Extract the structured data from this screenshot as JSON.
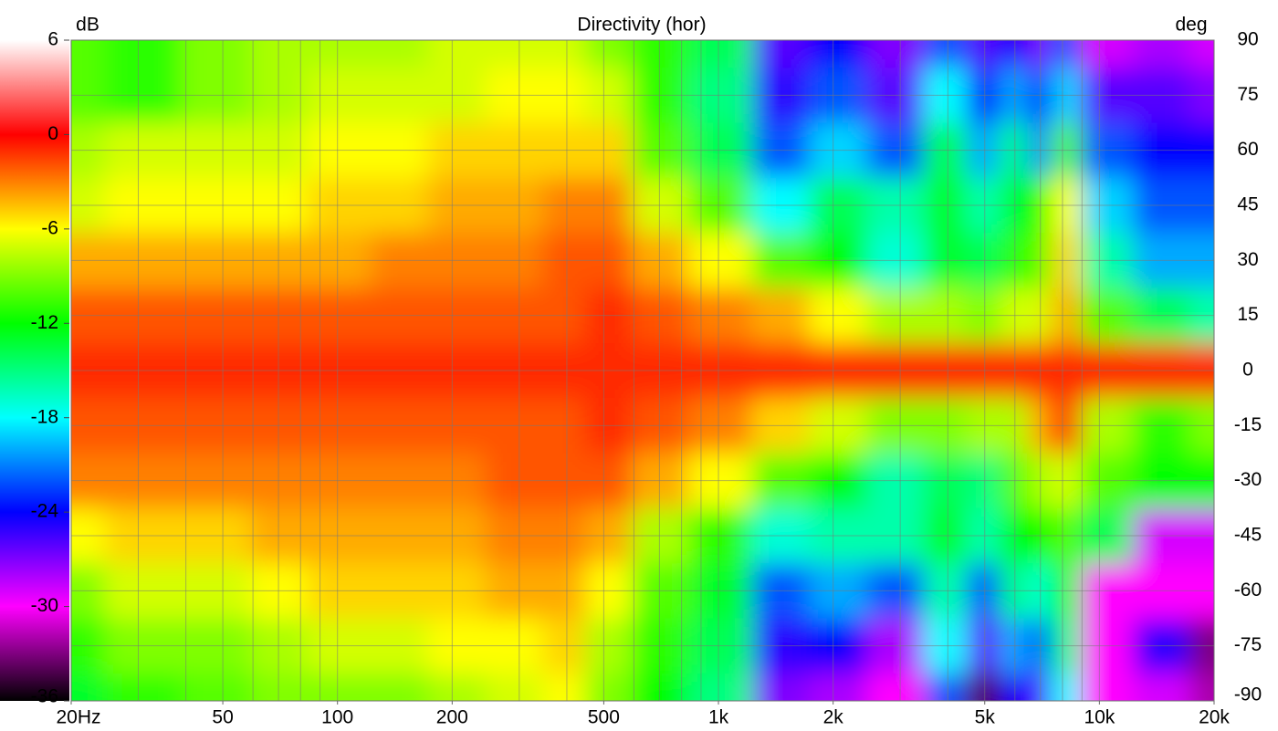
{
  "chart_data": {
    "type": "heatmap",
    "title": "Directivity (hor)",
    "colorbar_label": "dB",
    "y_label": "deg",
    "x": [
      20,
      30,
      50,
      70,
      100,
      150,
      200,
      300,
      400,
      500,
      700,
      1000,
      1500,
      2000,
      3000,
      4000,
      5000,
      6000,
      7000,
      8000,
      10000,
      15000,
      20000
    ],
    "y": [
      90,
      75,
      60,
      45,
      30,
      15,
      0,
      -15,
      -30,
      -45,
      -60,
      -75,
      -90
    ],
    "values": [
      [
        -10,
        -11,
        -9,
        -8,
        -8,
        -8,
        -7,
        -7,
        -7,
        -9,
        -11,
        -14,
        -26,
        -24,
        -27,
        -22,
        -26,
        -24,
        -27,
        -22,
        -29,
        -28,
        -29
      ],
      [
        -10,
        -11,
        -9,
        -8,
        -7,
        -7,
        -7,
        -6,
        -6,
        -7,
        -11,
        -15,
        -25,
        -22,
        -26,
        -18,
        -24,
        -20,
        -24,
        -19,
        -26,
        -26,
        -27
      ],
      [
        -8,
        -7,
        -7,
        -7,
        -6,
        -6,
        -5,
        -5,
        -5,
        -5,
        -10,
        -14,
        -22,
        -19,
        -22,
        -14,
        -20,
        -15,
        -21,
        -10,
        -22,
        -24,
        -24
      ],
      [
        -7,
        -6,
        -6,
        -6,
        -5,
        -5,
        -4,
        -4,
        -3,
        -3,
        -7,
        -10,
        -18,
        -14,
        -16,
        -13,
        -16,
        -13,
        -12,
        -6,
        -19,
        -22,
        -22
      ],
      [
        -4,
        -4,
        -4,
        -4,
        -4,
        -3,
        -3,
        -3,
        -2,
        -2,
        -4,
        -6,
        -10,
        -12,
        -17,
        -13,
        -14,
        -11,
        -10,
        -5,
        -16,
        -20,
        -20
      ],
      [
        -2,
        -2,
        -2,
        -2,
        -2,
        -2,
        -2,
        -2,
        -2,
        -1,
        -2,
        -3,
        -4,
        -6,
        -8,
        -8,
        -9,
        -7,
        -7,
        -4,
        -10,
        -14,
        -16
      ],
      [
        -1,
        -1,
        -1,
        -1,
        -1,
        -1,
        -1,
        -1,
        -1,
        -1,
        -1,
        -1,
        -1,
        -1,
        -1,
        -1,
        -1,
        -1,
        -1,
        -1,
        -1,
        -1,
        -1
      ],
      [
        -2,
        -2,
        -2,
        -2,
        -2,
        -2,
        -2,
        -2,
        -2,
        -1,
        -2,
        -3,
        -5,
        -7,
        -9,
        -9,
        -8,
        -8,
        -4,
        -1,
        -8,
        -11,
        -9
      ],
      [
        -3,
        -3,
        -3,
        -3,
        -3,
        -3,
        -3,
        -2,
        -2,
        -2,
        -4,
        -6,
        -10,
        -12,
        -16,
        -14,
        -15,
        -10,
        -8,
        -7,
        -10,
        -12,
        -12
      ],
      [
        -6,
        -5,
        -5,
        -4,
        -4,
        -4,
        -4,
        -3,
        -3,
        -4,
        -8,
        -11,
        -17,
        -16,
        -16,
        -13,
        -16,
        -12,
        -12,
        -10,
        -14,
        -29,
        -29
      ],
      [
        -9,
        -7,
        -7,
        -6,
        -5,
        -5,
        -5,
        -4,
        -4,
        -6,
        -10,
        -13,
        -22,
        -20,
        -22,
        -16,
        -22,
        -15,
        -17,
        -12,
        -30,
        -30,
        -30
      ],
      [
        -11,
        -9,
        -9,
        -8,
        -7,
        -7,
        -6,
        -6,
        -5,
        -8,
        -11,
        -14,
        -25,
        -24,
        -28,
        -18,
        -26,
        -20,
        -22,
        -15,
        -30,
        -25,
        -33
      ],
      [
        -13,
        -11,
        -10,
        -9,
        -9,
        -9,
        -8,
        -7,
        -6,
        -9,
        -12,
        -15,
        -27,
        -28,
        -30,
        -22,
        -34,
        -24,
        -26,
        -18,
        -30,
        -29,
        -32
      ]
    ],
    "xlim": [
      20,
      20000
    ],
    "x_scale": "log",
    "xticks": [
      {
        "value": 20,
        "label": "20Hz"
      },
      50,
      100,
      200,
      500,
      {
        "value": 1000,
        "label": "1k"
      },
      {
        "value": 2000,
        "label": "2k"
      },
      {
        "value": 5000,
        "label": "5k"
      },
      {
        "value": 10000,
        "label": "10k"
      },
      {
        "value": 20000,
        "label": "20k"
      }
    ],
    "ylim": [
      -90,
      90
    ],
    "yticks": [
      90,
      75,
      60,
      45,
      30,
      15,
      0,
      -15,
      -30,
      -45,
      -60,
      -75,
      -90
    ],
    "zlim": [
      -36,
      6
    ],
    "zticks": [
      6,
      0,
      -6,
      -12,
      -18,
      -24,
      -30,
      -36
    ],
    "colormap": [
      "#000000",
      "#ff00ff",
      "#0000ff",
      "#00ffff",
      "#00ff00",
      "#ffff00",
      "#ff0000",
      "#ffffff"
    ],
    "grid": true
  }
}
